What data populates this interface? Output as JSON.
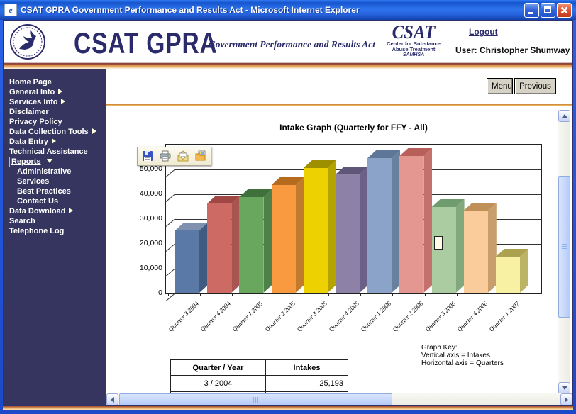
{
  "window": {
    "title": "CSAT GPRA Government Performance and Results Act - Microsoft Internet Explorer",
    "icon_glyph": "e"
  },
  "header": {
    "brand_title": "CSAT GPRA",
    "brand_subtitle": "Government Performance and Results Act",
    "csat_logo": {
      "acronym": "CSAT",
      "line1": "Center for Substance",
      "line2": "Abuse Treatment",
      "line3": "SAMHSA"
    },
    "logout_label": "Logout",
    "user_label": "User: Christopher Shumway"
  },
  "sidebar": {
    "items": [
      {
        "label": "Home Page"
      },
      {
        "label": "General Info",
        "arrow": "right"
      },
      {
        "label": "Services Info",
        "arrow": "right"
      },
      {
        "label": "Disclaimer"
      },
      {
        "label": "Privacy Policy"
      },
      {
        "label": "Data Collection Tools",
        "arrow": "right"
      },
      {
        "label": "Data Entry",
        "arrow": "right"
      },
      {
        "label": "Technical Assistance",
        "underline": true
      },
      {
        "label": "Reports",
        "arrow": "down",
        "underline": true,
        "boxed": true
      },
      {
        "label": "Administrative",
        "indent": true
      },
      {
        "label": "Services",
        "indent": true
      },
      {
        "label": "Best Practices",
        "indent": true
      },
      {
        "label": "Contact Us",
        "indent": true
      },
      {
        "label": "Data Download",
        "arrow": "right"
      },
      {
        "label": "Search"
      },
      {
        "label": "Telephone Log"
      }
    ]
  },
  "actions": {
    "menu": "Menu",
    "previous": "Previous"
  },
  "toolbar": {
    "icons": [
      "save-icon",
      "print-icon",
      "email-icon",
      "export-icon"
    ]
  },
  "graph_key": {
    "title": "Graph Key:",
    "line1": "Vertical axis = Intakes",
    "line2": "Horizontal axis = Quarters"
  },
  "table": {
    "headers": [
      "Quarter / Year",
      "Intakes"
    ],
    "rows": [
      [
        "3 / 2004",
        "25,193"
      ]
    ]
  },
  "chart_data": {
    "type": "bar",
    "title": "Intake Graph (Quarterly for FFY - All)",
    "categories": [
      "Quarter 3 2004",
      "Quarter 4 2004",
      "Quarter 1 2005",
      "Quarter 2 2005",
      "Quarter 3 2005",
      "Quarter 4 2005",
      "Quarter 1 2006",
      "Quarter 2 2006",
      "Quarter 3 2006",
      "Quarter 4 2006",
      "Quarter 1 2007"
    ],
    "values": [
      25193,
      36100,
      38600,
      43500,
      50300,
      47700,
      54300,
      55000,
      34700,
      33200,
      14500
    ],
    "xlabel": "Quarters",
    "ylabel": "Intakes",
    "ylim": [
      0,
      60000
    ],
    "yticks": [
      0,
      10000,
      20000,
      30000,
      40000,
      50000
    ],
    "ytick_labels": [
      "0",
      "10,000",
      "20,000",
      "30,000",
      "40,000",
      "50,000"
    ],
    "grid": true,
    "legend": false,
    "bar_colors": [
      {
        "front": "#5B79A6",
        "top": "#7E92AF",
        "side": "#415A80"
      },
      {
        "front": "#CE6A64",
        "top": "#A04643",
        "side": "#A85450"
      },
      {
        "front": "#69A75F",
        "top": "#40703B",
        "side": "#4E8049"
      },
      {
        "front": "#FA9A40",
        "top": "#B56A1E",
        "side": "#C27A2C"
      },
      {
        "front": "#EDD100",
        "top": "#9E8F00",
        "side": "#B5A300"
      },
      {
        "front": "#8D81A8",
        "top": "#5F567A",
        "side": "#6A6088"
      },
      {
        "front": "#8BA3C8",
        "top": "#5E7799",
        "side": "#68819F"
      },
      {
        "front": "#E49690",
        "top": "#B95F5B",
        "side": "#C4706C"
      },
      {
        "front": "#ABCBA0",
        "top": "#6F9C6E",
        "side": "#82A87E"
      },
      {
        "front": "#FACC9C",
        "top": "#BF9058",
        "side": "#C89E6C"
      },
      {
        "front": "#F8F0A2",
        "top": "#ABA14E",
        "side": "#BCB465"
      }
    ]
  }
}
